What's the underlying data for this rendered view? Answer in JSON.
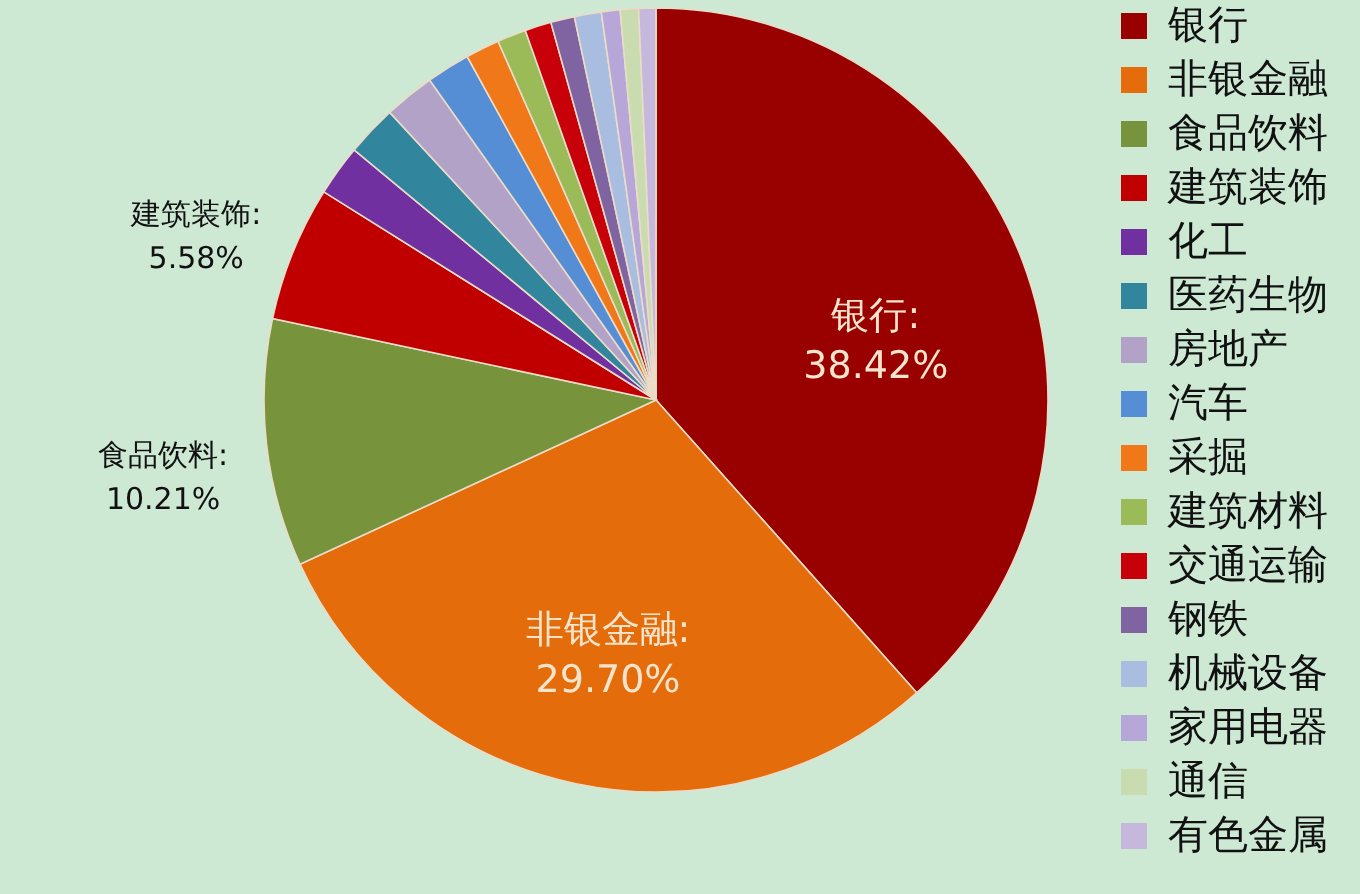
{
  "chart_data": {
    "type": "pie",
    "categories": [
      "银行",
      "非银金融",
      "食品饮料",
      "建筑装饰",
      "化工",
      "医药生物",
      "房地产",
      "汽车",
      "采掘",
      "建筑材料",
      "交通运输",
      "钢铁",
      "机械设备",
      "家用电器",
      "通信",
      "有色金属"
    ],
    "values": [
      38.42,
      29.7,
      10.21,
      5.58,
      2.1,
      2.1,
      2.09,
      1.8,
      1.4,
      1.19,
      1.09,
      0.98,
      1.11,
      0.77,
      0.75,
      0.71
    ],
    "colors": [
      "#990000",
      "#e46c0a",
      "#77933c",
      "#c00000",
      "#7030a0",
      "#31859c",
      "#b3a2c7",
      "#558ed5",
      "#f07818",
      "#9bbb59",
      "#c8000a",
      "#8064a2",
      "#a9bde0",
      "#b7a6d8",
      "#c8dcb0",
      "#c5b8dc"
    ],
    "value_labels": [
      "银行:\n38.42%",
      "非银金融:\n29.70%",
      "食品饮料:\n10.21%",
      "建筑装饰:\n5.58%",
      null,
      null,
      null,
      null,
      null,
      null,
      null,
      null,
      null,
      null,
      null,
      null
    ],
    "legend": "right"
  }
}
